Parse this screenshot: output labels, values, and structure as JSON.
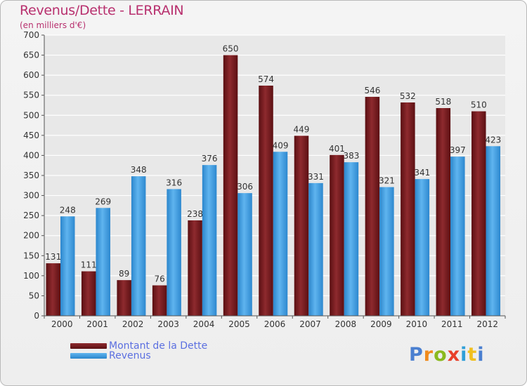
{
  "header": {
    "title": "Revenus/Dette - LERRAIN",
    "subtitle": "(en milliers d'€)"
  },
  "logo": "Proxiti",
  "colors": {
    "debt": "#7a1a1e",
    "revenue": "#3c9ee0",
    "grid": "#ffffff",
    "text": "#333333"
  },
  "chart_data": {
    "type": "bar",
    "title": "Revenus/Dette - LERRAIN",
    "subtitle": "(en milliers d'€)",
    "categories": [
      "2000",
      "2001",
      "2002",
      "2003",
      "2004",
      "2005",
      "2006",
      "2007",
      "2008",
      "2009",
      "2010",
      "2011",
      "2012"
    ],
    "series": [
      {
        "name": "Montant de la Dette",
        "values": [
          131,
          111,
          89,
          76,
          238,
          650,
          574,
          449,
          401,
          546,
          532,
          518,
          510
        ]
      },
      {
        "name": "Revenus",
        "values": [
          248,
          269,
          348,
          316,
          376,
          306,
          409,
          331,
          383,
          321,
          341,
          397,
          423
        ]
      }
    ],
    "ylim": [
      0,
      700
    ],
    "yticks": [
      0,
      50,
      100,
      150,
      200,
      250,
      300,
      350,
      400,
      450,
      500,
      550,
      600,
      650,
      700
    ],
    "grid": true,
    "legend_position": "bottom-left"
  }
}
